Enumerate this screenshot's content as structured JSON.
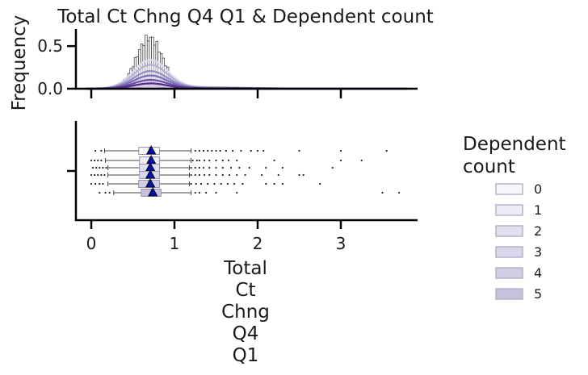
{
  "chart_data": {
    "title": "Total Ct Chng Q4 Q1 & Dependent count",
    "type": "histogram+boxplot",
    "xlabel_lines": [
      "Total",
      "Ct",
      "Chng",
      "Q4",
      "Q1"
    ],
    "xlim": [
      -0.2,
      3.9
    ],
    "xticks": [
      "0",
      "1",
      "2",
      "3"
    ],
    "top_panel": {
      "ylabel": "Frequency",
      "ylim": [
        0,
        0.7
      ],
      "yticks": [
        "0.0",
        "0.5"
      ],
      "histogram_peak_x": 0.7,
      "histogram_peak_y": 0.65,
      "kde_peaks": [
        0.33,
        0.27,
        0.2,
        0.15,
        0.1,
        0.06
      ]
    },
    "bottom_panel": {
      "series": [
        {
          "name": "0",
          "q1": 0.57,
          "median": 0.7,
          "q3": 0.82,
          "mean": 0.72,
          "whisker_low": 0.16,
          "whisker_high": 1.2,
          "outliers": [
            0.05,
            0.12,
            1.25,
            1.3,
            1.35,
            1.4,
            1.45,
            1.5,
            1.55,
            1.62,
            1.7,
            1.8,
            1.92,
            2.0,
            2.07,
            2.5,
            3.0,
            3.55
          ]
        },
        {
          "name": "1",
          "q1": 0.58,
          "median": 0.7,
          "q3": 0.82,
          "mean": 0.72,
          "whisker_low": 0.17,
          "whisker_high": 1.2,
          "outliers": [
            0.0,
            0.04,
            0.08,
            0.12,
            1.22,
            1.27,
            1.3,
            1.36,
            1.42,
            1.5,
            1.58,
            1.65,
            1.75,
            2.2,
            3.0,
            3.25
          ]
        },
        {
          "name": "2",
          "q1": 0.58,
          "median": 0.7,
          "q3": 0.82,
          "mean": 0.71,
          "whisker_low": 0.2,
          "whisker_high": 1.18,
          "outliers": [
            0.02,
            0.06,
            0.1,
            0.14,
            0.18,
            1.2,
            1.25,
            1.3,
            1.35,
            1.42,
            1.5,
            1.58,
            1.68,
            1.78,
            1.9,
            2.1,
            2.3,
            2.9
          ]
        },
        {
          "name": "3",
          "q1": 0.58,
          "median": 0.7,
          "q3": 0.82,
          "mean": 0.71,
          "whisker_low": 0.2,
          "whisker_high": 1.18,
          "outliers": [
            0.0,
            0.04,
            0.08,
            0.12,
            0.16,
            1.2,
            1.25,
            1.3,
            1.36,
            1.42,
            1.5,
            1.58,
            1.66,
            1.75,
            1.85,
            2.05,
            2.25,
            2.5,
            2.55
          ]
        },
        {
          "name": "4",
          "q1": 0.57,
          "median": 0.69,
          "q3": 0.82,
          "mean": 0.71,
          "whisker_low": 0.2,
          "whisker_high": 1.18,
          "outliers": [
            0.0,
            0.05,
            0.1,
            0.14,
            1.2,
            1.26,
            1.32,
            1.4,
            1.48,
            1.56,
            1.64,
            1.72,
            1.82,
            2.1,
            2.2,
            2.3,
            2.75
          ]
        },
        {
          "name": "5",
          "q1": 0.6,
          "median": 0.72,
          "q3": 0.84,
          "mean": 0.74,
          "whisker_low": 0.27,
          "whisker_high": 1.2,
          "outliers": [
            0.1,
            0.17,
            0.22,
            1.25,
            1.3,
            1.38,
            1.5,
            1.75,
            3.5,
            3.7
          ]
        }
      ]
    },
    "legend": {
      "title_lines": [
        "Dependent",
        "count"
      ],
      "placement": "right",
      "entries": [
        "0",
        "1",
        "2",
        "3",
        "4",
        "5"
      ]
    },
    "colors": {
      "series_fills": [
        "#f7f6fa",
        "#edebf4",
        "#e0dfee",
        "#d9d7ea",
        "#d1cee4",
        "#c8c1de"
      ],
      "kde_lines": [
        "#dcdaf0",
        "#b4b0d8",
        "#948dc5",
        "#7c6cb5",
        "#6a51a3",
        "#54278f"
      ],
      "mean_marker": "#0010a8",
      "axis": "#000000"
    }
  }
}
